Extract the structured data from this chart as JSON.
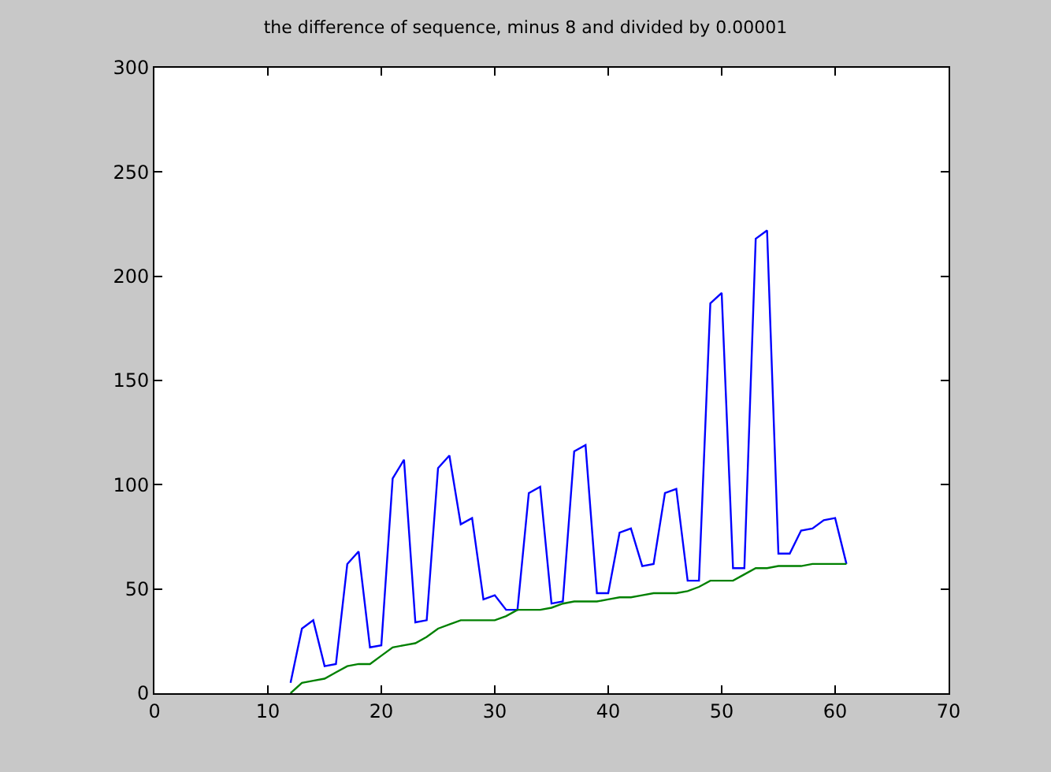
{
  "chart_data": {
    "type": "line",
    "title": "the difference of sequence, minus 8 and divided by 0.00001",
    "x": [
      12,
      13,
      14,
      15,
      16,
      17,
      18,
      19,
      20,
      21,
      22,
      23,
      24,
      25,
      26,
      27,
      28,
      29,
      30,
      31,
      32,
      33,
      34,
      35,
      36,
      37,
      38,
      39,
      40,
      41,
      42,
      43,
      44,
      45,
      46,
      47,
      48,
      49,
      50,
      51,
      52,
      53,
      54,
      55,
      56,
      57,
      58,
      59,
      60,
      61
    ],
    "series": [
      {
        "color": "#0000ff",
        "values": [
          5,
          31,
          35,
          13,
          14,
          62,
          68,
          22,
          23,
          103,
          112,
          34,
          35,
          108,
          114,
          81,
          84,
          45,
          47,
          40,
          40,
          96,
          99,
          43,
          44,
          116,
          119,
          48,
          48,
          77,
          79,
          61,
          62,
          96,
          98,
          54,
          54,
          187,
          192,
          60,
          60,
          218,
          222,
          67,
          67,
          78,
          79,
          83,
          84,
          62
        ]
      },
      {
        "color": "#008000",
        "values": [
          0,
          5,
          6,
          7,
          10,
          13,
          14,
          14,
          18,
          22,
          23,
          24,
          27,
          31,
          33,
          35,
          35,
          35,
          35,
          37,
          40,
          40,
          40,
          41,
          43,
          44,
          44,
          44,
          45,
          46,
          46,
          47,
          48,
          48,
          48,
          49,
          51,
          54,
          54,
          54,
          57,
          60,
          60,
          61,
          61,
          61,
          62,
          62,
          62,
          62
        ]
      }
    ],
    "xlim": [
      0,
      70
    ],
    "xticks": [
      0,
      10,
      20,
      30,
      40,
      50,
      60,
      70
    ],
    "ylim": [
      0,
      300
    ],
    "yticks": [
      0,
      50,
      100,
      150,
      200,
      250,
      300
    ]
  }
}
